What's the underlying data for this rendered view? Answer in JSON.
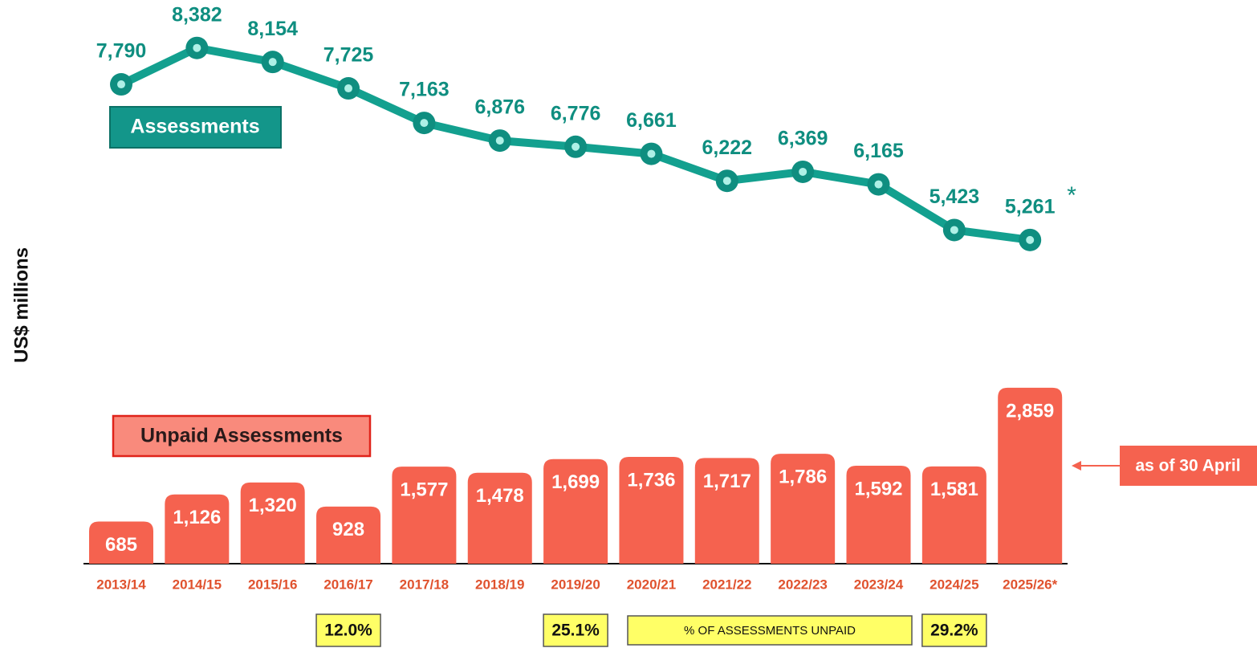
{
  "chart_data": {
    "type": "combo",
    "y_label": "US$ millions",
    "categories": [
      "2013/14",
      "2014/15",
      "2015/16",
      "2016/17",
      "2017/18",
      "2018/19",
      "2019/20",
      "2020/21",
      "2021/22",
      "2022/23",
      "2023/24",
      "2024/25",
      "2025/26*"
    ],
    "ylim": [
      0,
      8900
    ],
    "series": [
      {
        "name": "Assessments",
        "type": "line",
        "color": "#13a08f",
        "values": [
          7790,
          8382,
          8154,
          7725,
          7163,
          6876,
          6776,
          6661,
          6222,
          6369,
          6165,
          5423,
          5261
        ],
        "value_labels": [
          "7,790",
          "8,382",
          "8,154",
          "7,725",
          "7,163",
          "6,876",
          "6,776",
          "6,661",
          "6,222",
          "6,369",
          "6,165",
          "5,423",
          "5,261"
        ]
      },
      {
        "name": "Unpaid Assessments",
        "type": "bar",
        "color": "#f5624f",
        "values": [
          685,
          1126,
          1320,
          928,
          1577,
          1478,
          1699,
          1736,
          1717,
          1786,
          1592,
          1581,
          2859
        ],
        "value_labels": [
          "685",
          "1,126",
          "1,320",
          "928",
          "1,577",
          "1,478",
          "1,699",
          "1,736",
          "1,717",
          "1,786",
          "1,592",
          "1,581",
          "2,859"
        ]
      }
    ],
    "asterisk": "*",
    "annotation": "as of 30 April",
    "unpaid_share": {
      "label": "% OF ASSESSMENTS UNPAID",
      "categories": [
        "2016/17",
        "2019/20",
        "2024/25"
      ],
      "values": [
        12.0,
        25.1,
        29.2
      ],
      "value_labels": [
        "12.0%",
        "25.1%",
        "29.2%"
      ]
    }
  }
}
